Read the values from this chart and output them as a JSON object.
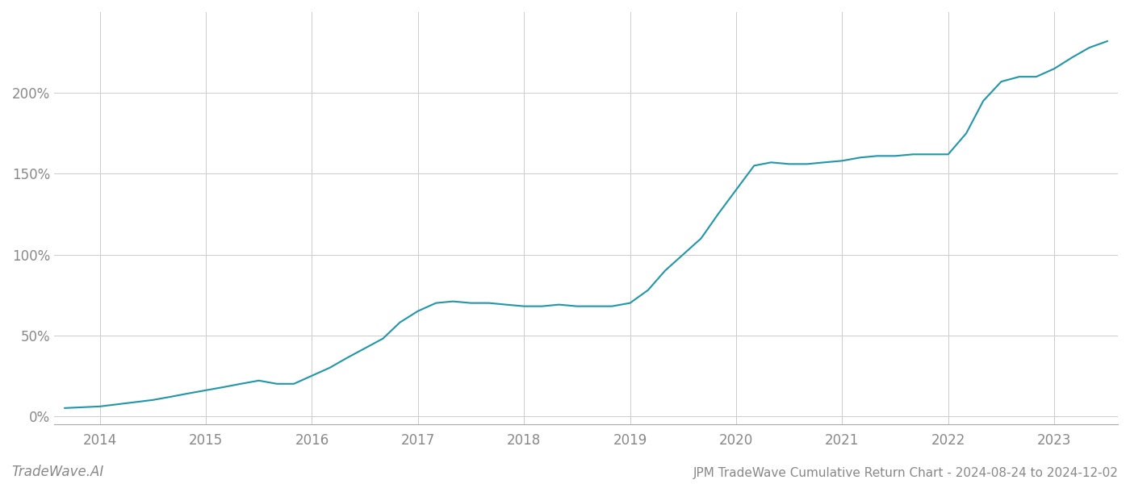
{
  "title": "JPM TradeWave Cumulative Return Chart - 2024-08-24 to 2024-12-02",
  "watermark": "TradeWave.AI",
  "line_color": "#2196a8",
  "background_color": "#ffffff",
  "grid_color": "#cccccc",
  "x_years": [
    2014,
    2015,
    2016,
    2017,
    2018,
    2019,
    2020,
    2021,
    2022,
    2023
  ],
  "x_values": [
    2013.67,
    2014.0,
    2014.25,
    2014.5,
    2014.67,
    2014.83,
    2015.0,
    2015.17,
    2015.33,
    2015.5,
    2015.67,
    2015.83,
    2016.0,
    2016.17,
    2016.33,
    2016.5,
    2016.67,
    2016.83,
    2017.0,
    2017.17,
    2017.33,
    2017.5,
    2017.67,
    2017.83,
    2018.0,
    2018.17,
    2018.33,
    2018.5,
    2018.67,
    2018.83,
    2019.0,
    2019.17,
    2019.33,
    2019.5,
    2019.67,
    2019.83,
    2020.0,
    2020.17,
    2020.33,
    2020.5,
    2020.67,
    2020.83,
    2021.0,
    2021.17,
    2021.33,
    2021.5,
    2021.67,
    2021.83,
    2022.0,
    2022.17,
    2022.33,
    2022.5,
    2022.67,
    2022.83,
    2023.0,
    2023.17,
    2023.33,
    2023.5
  ],
  "y_values": [
    5,
    6,
    8,
    10,
    12,
    14,
    16,
    18,
    20,
    22,
    20,
    20,
    25,
    30,
    36,
    42,
    48,
    58,
    65,
    70,
    71,
    70,
    70,
    69,
    68,
    68,
    69,
    68,
    68,
    68,
    70,
    78,
    90,
    100,
    110,
    125,
    140,
    155,
    157,
    156,
    156,
    157,
    158,
    160,
    161,
    161,
    162,
    162,
    162,
    175,
    195,
    207,
    210,
    210,
    215,
    222,
    228,
    232
  ],
  "ylim": [
    -5,
    250
  ],
  "yticks": [
    0,
    50,
    100,
    150,
    200
  ],
  "ytick_labels": [
    "0%",
    "50%",
    "100%",
    "150%",
    "200%"
  ],
  "title_fontsize": 11,
  "tick_fontsize": 12,
  "watermark_fontsize": 12,
  "line_width": 1.5
}
